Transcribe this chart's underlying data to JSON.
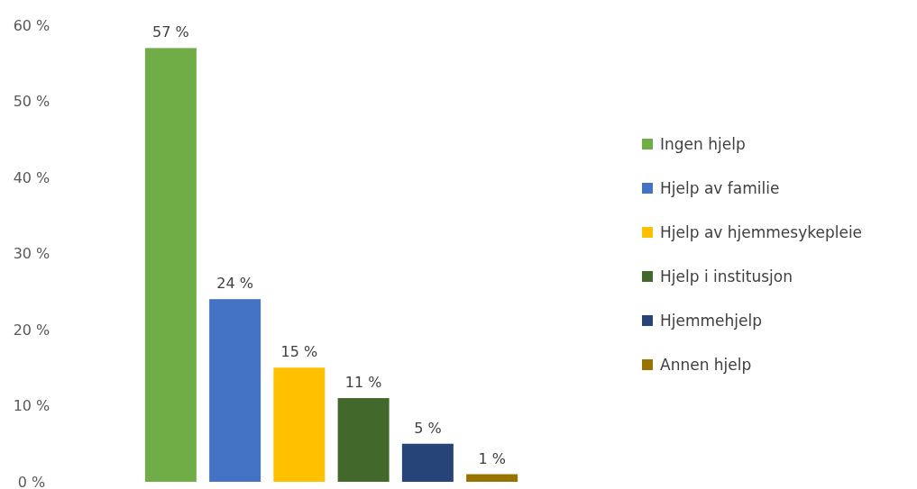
{
  "chart_data": {
    "type": "bar",
    "categories": [
      null
    ],
    "series": [
      {
        "name": "Ingen hjelp",
        "color": "#70ad47",
        "values": [
          57
        ],
        "value_labels": [
          "57 %"
        ]
      },
      {
        "name": "Hjelp av familie",
        "color": "#4472c4",
        "values": [
          24
        ],
        "value_labels": [
          "24 %"
        ]
      },
      {
        "name": "Hjelp av hjemmesykepleie",
        "color": "#ffc000",
        "values": [
          15
        ],
        "value_labels": [
          "15 %"
        ]
      },
      {
        "name": "Hjelp i institusjon",
        "color": "#43682b",
        "values": [
          11
        ],
        "value_labels": [
          "11 %"
        ]
      },
      {
        "name": "Hjemmehjelp",
        "color": "#264478",
        "values": [
          5
        ],
        "value_labels": [
          "5 %"
        ]
      },
      {
        "name": "Annen hjelp",
        "color": "#997300",
        "values": [
          1
        ],
        "value_labels": [
          "1 %"
        ]
      }
    ],
    "ylim": [
      0,
      60
    ],
    "yticks": [
      {
        "value": 0,
        "label": "0 %"
      },
      {
        "value": 10,
        "label": "10 %"
      },
      {
        "value": 20,
        "label": "20 %"
      },
      {
        "value": 30,
        "label": "30 %"
      },
      {
        "value": 40,
        "label": "40 %"
      },
      {
        "value": 50,
        "label": "50 %"
      },
      {
        "value": 60,
        "label": "60 %"
      }
    ],
    "legend": "right",
    "grid": false
  }
}
